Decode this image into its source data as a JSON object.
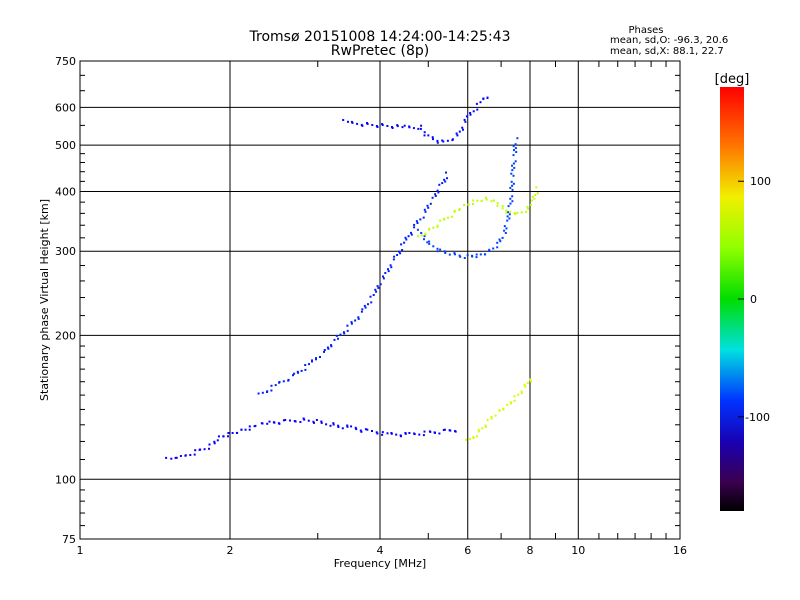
{
  "title": "Tromsø 20151008 14:24:00-14:25:43",
  "subtitle": "RwPretec (8p)",
  "phase_info": {
    "header": "Phases",
    "line_o": "mean, sd,O: -96.3, 20.6",
    "line_x": "mean, sd,X:  88.1, 22.7"
  },
  "chart_data": {
    "type": "scatter",
    "xlabel": "Frequency [MHz]",
    "ylabel": "Stationary phase Virtual Height [km]",
    "x_scale": "log",
    "y_scale": "log",
    "xlim": [
      1,
      16
    ],
    "ylim": [
      75,
      750
    ],
    "xticks": [
      1,
      2,
      4,
      6,
      8,
      10,
      16
    ],
    "xtick_labels": [
      "1",
      "2",
      "4",
      "6",
      "8",
      "10",
      "16"
    ],
    "yticks": [
      75,
      100,
      200,
      300,
      400,
      500,
      600,
      750
    ],
    "ytick_labels": [
      "75",
      "100",
      "200",
      "300",
      "400",
      "500",
      "600",
      "750"
    ],
    "grid": true,
    "colorbar": {
      "label": "[deg]",
      "range": [
        -180,
        180
      ],
      "ticks": [
        100,
        0,
        -100
      ],
      "tick_labels": [
        "100",
        "0",
        "-100"
      ],
      "colormap": "rainbow"
    },
    "series": [
      {
        "trace": "E-layer O-mode",
        "phase_deg": -110,
        "points": [
          [
            1.5,
            110
          ],
          [
            1.55,
            110
          ],
          [
            1.6,
            111
          ],
          [
            1.85,
            118
          ],
          [
            1.9,
            122
          ],
          [
            2.0,
            124
          ],
          [
            2.1,
            126
          ],
          [
            2.2,
            128
          ],
          [
            2.3,
            130
          ],
          [
            2.4,
            131
          ],
          [
            2.6,
            132
          ],
          [
            2.8,
            133
          ],
          [
            3.0,
            132
          ],
          [
            3.2,
            130
          ],
          [
            3.5,
            128
          ],
          [
            3.8,
            126
          ],
          [
            4.2,
            124
          ],
          [
            4.6,
            124
          ],
          [
            5.0,
            125
          ],
          [
            5.4,
            126
          ],
          [
            5.8,
            127
          ]
        ]
      },
      {
        "trace": "F1 O-mode ascending",
        "phase_deg": -100,
        "points": [
          [
            2.3,
            150
          ],
          [
            2.5,
            158
          ],
          [
            2.7,
            165
          ],
          [
            2.9,
            175
          ],
          [
            3.1,
            185
          ],
          [
            3.3,
            198
          ],
          [
            3.5,
            210
          ],
          [
            3.7,
            225
          ],
          [
            3.9,
            245
          ],
          [
            4.1,
            268
          ],
          [
            4.3,
            290
          ],
          [
            4.5,
            315
          ],
          [
            4.7,
            338
          ],
          [
            4.9,
            360
          ],
          [
            5.1,
            385
          ],
          [
            5.3,
            410
          ],
          [
            5.5,
            440
          ]
        ]
      },
      {
        "trace": "F2 O-mode cusp",
        "phase_deg": -90,
        "points": [
          [
            4.8,
            330
          ],
          [
            5.0,
            312
          ],
          [
            5.3,
            300
          ],
          [
            5.6,
            295
          ],
          [
            6.0,
            292
          ],
          [
            6.3,
            293
          ],
          [
            6.6,
            298
          ],
          [
            6.9,
            310
          ],
          [
            7.1,
            325
          ],
          [
            7.2,
            345
          ],
          [
            7.3,
            370
          ],
          [
            7.35,
            400
          ],
          [
            7.4,
            440
          ],
          [
            7.45,
            480
          ],
          [
            7.5,
            520
          ]
        ]
      },
      {
        "trace": "F2 X-mode",
        "phase_deg": 90,
        "points": [
          [
            4.8,
            320
          ],
          [
            5.0,
            330
          ],
          [
            5.3,
            345
          ],
          [
            5.6,
            360
          ],
          [
            5.9,
            372
          ],
          [
            6.2,
            380
          ],
          [
            6.5,
            385
          ],
          [
            6.8,
            380
          ],
          [
            7.0,
            370
          ],
          [
            7.3,
            360
          ],
          [
            7.6,
            358
          ],
          [
            7.9,
            365
          ],
          [
            8.1,
            380
          ],
          [
            8.3,
            410
          ]
        ]
      },
      {
        "trace": "F1 X-mode",
        "phase_deg": 95,
        "points": [
          [
            6.0,
            120
          ],
          [
            6.3,
            125
          ],
          [
            6.6,
            132
          ],
          [
            6.9,
            138
          ],
          [
            7.2,
            142
          ],
          [
            7.5,
            148
          ],
          [
            7.8,
            155
          ],
          [
            8.1,
            165
          ]
        ]
      },
      {
        "trace": "Multi-hop O-mode",
        "phase_deg": -105,
        "points": [
          [
            3.4,
            560
          ],
          [
            3.5,
            555
          ],
          [
            4.5,
            545
          ],
          [
            4.8,
            545
          ],
          [
            5.0,
            520
          ],
          [
            5.4,
            505
          ],
          [
            5.7,
            520
          ],
          [
            6.0,
            570
          ],
          [
            6.4,
            620
          ],
          [
            6.7,
            635
          ]
        ]
      }
    ]
  }
}
